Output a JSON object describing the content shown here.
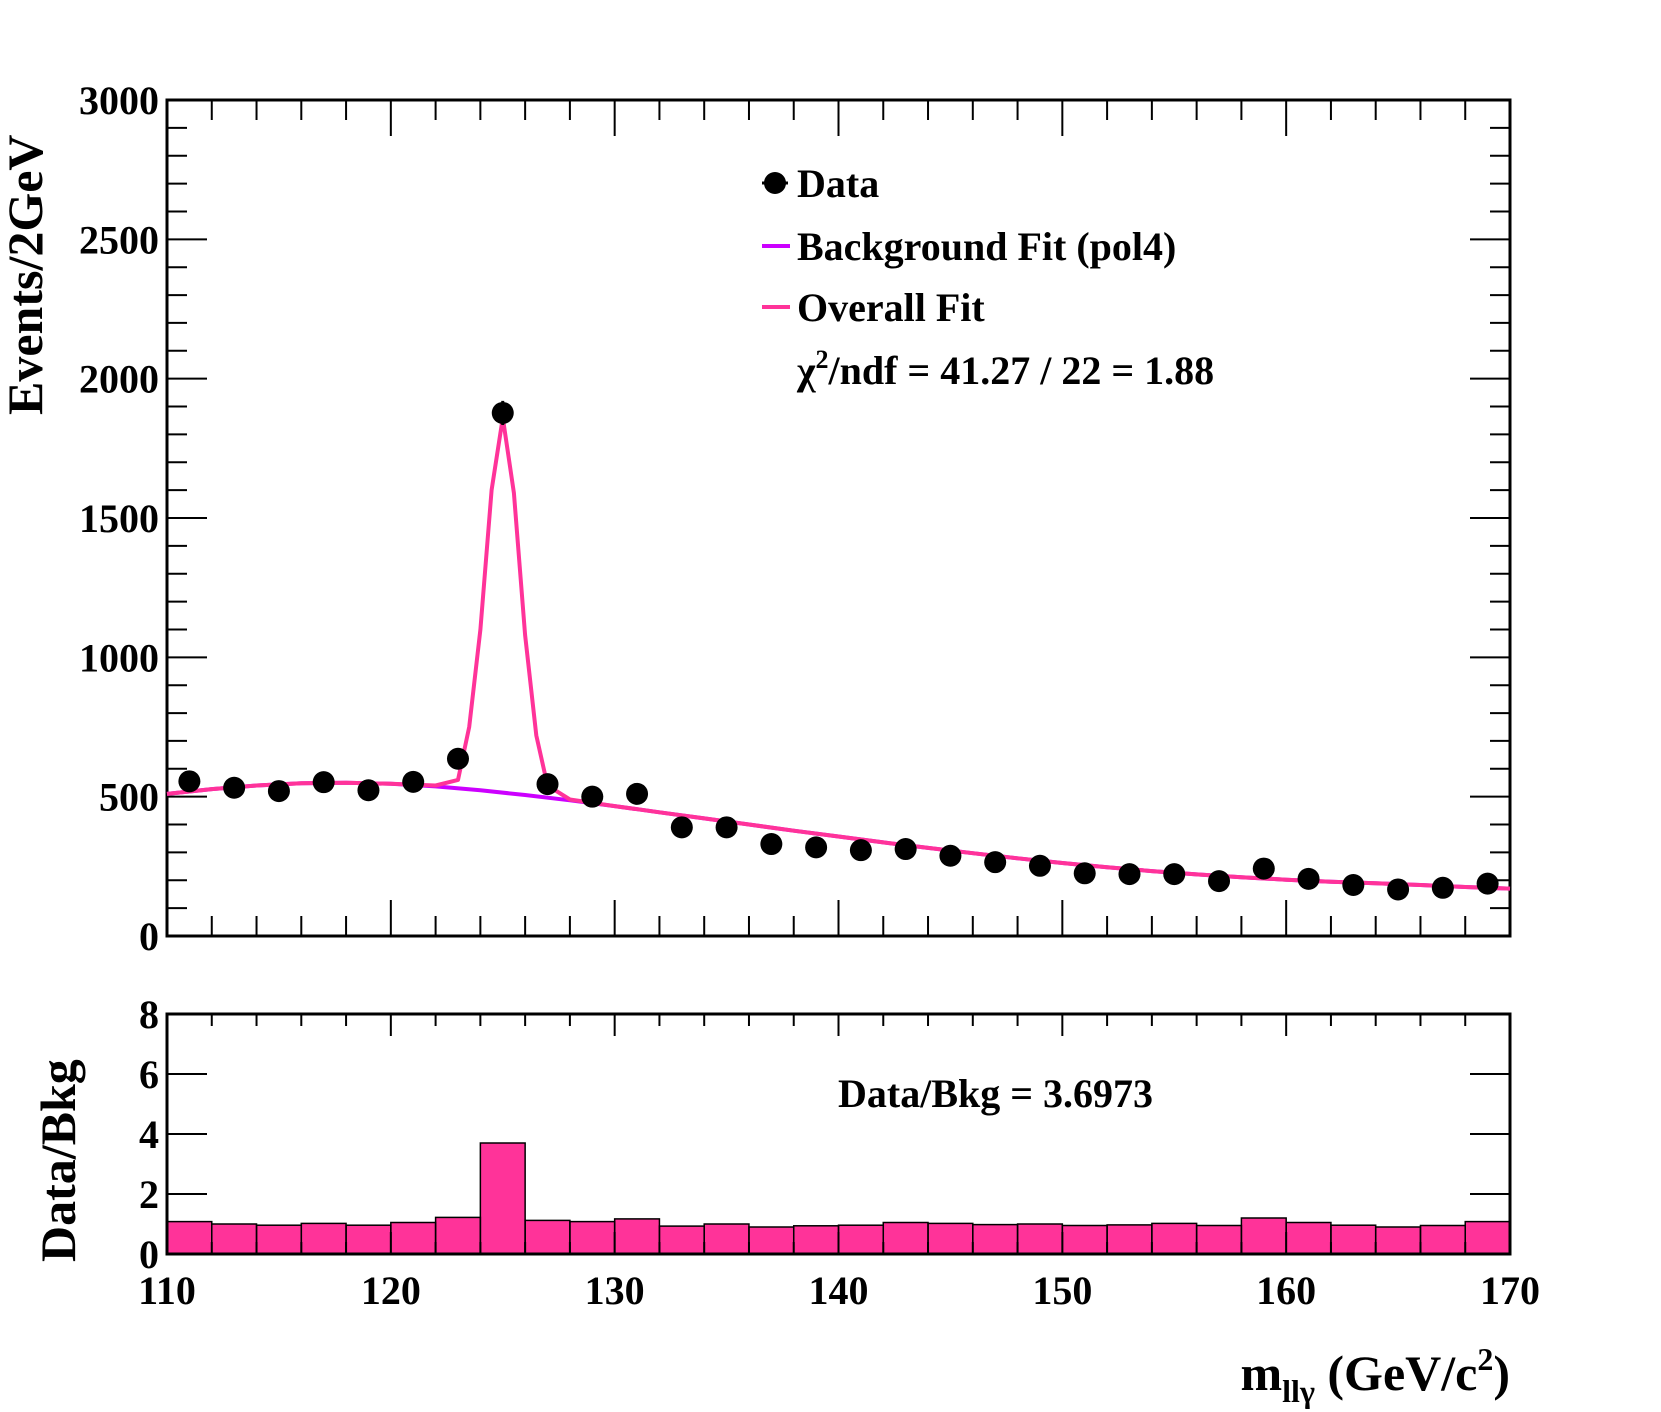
{
  "colors": {
    "data": "#000000",
    "background_fit": "#cc00ff",
    "overall_fit": "#ff3399",
    "ratio_fill": "#ff3399",
    "axes": "#000000"
  },
  "chart_data": [
    {
      "panel": "main",
      "type": "scatter",
      "title": "",
      "xlabel": "m",
      "xlabel_sub": "llγ",
      "xlabel_unit": " (GeV/c",
      "xlabel_sup": "2",
      "xlabel_close": ")",
      "ylabel": "Events/2GeV",
      "xlim": [
        110,
        170
      ],
      "ylim": [
        0,
        3000
      ],
      "ytick_labels": [
        "0",
        "500",
        "1000",
        "1500",
        "2000",
        "2500",
        "3000"
      ],
      "ytick_values": [
        0,
        500,
        1000,
        1500,
        2000,
        2500,
        3000
      ],
      "legend_position": "top-right",
      "legend": {
        "data_label": "Data",
        "background_label": "Background Fit (pol4)",
        "overall_label": "Overall Fit",
        "chi2_prefix": "χ",
        "chi2_sup": "2",
        "chi2_text": "/ndf = 41.27 / 22 = 1.88"
      },
      "series": [
        {
          "name": "Data",
          "style": "points",
          "x": [
            111,
            113,
            115,
            117,
            119,
            121,
            123,
            125,
            127,
            129,
            131,
            133,
            135,
            137,
            139,
            141,
            143,
            145,
            147,
            149,
            151,
            153,
            155,
            157,
            159,
            161,
            163,
            165,
            167,
            169
          ],
          "y": [
            555,
            532,
            520,
            552,
            523,
            553,
            636,
            1877,
            545,
            500,
            510,
            390,
            390,
            330,
            318,
            308,
            312,
            288,
            265,
            252,
            225,
            222,
            222,
            197,
            242,
            205,
            183,
            167,
            173,
            188
          ]
        },
        {
          "name": "Background Fit (pol4)",
          "style": "line",
          "x": [
            110,
            112,
            114,
            116,
            118,
            120,
            122,
            124,
            126,
            128,
            130,
            132,
            134,
            136,
            138,
            140,
            142,
            144,
            146,
            148,
            150,
            152,
            154,
            156,
            158,
            160,
            162,
            164,
            166,
            168,
            170
          ],
          "y": [
            510,
            527,
            540,
            548,
            550,
            546,
            537,
            523,
            506,
            487,
            466,
            444,
            422,
            400,
            378,
            357,
            336,
            316,
            297,
            279,
            262,
            247,
            233,
            221,
            211,
            202,
            195,
            189,
            183,
            176,
            170
          ]
        },
        {
          "name": "Overall Fit",
          "style": "line",
          "signal_peak_x": 125,
          "signal_peak_y": 1860,
          "signal_sigma": 0.75,
          "x": [
            110,
            112,
            114,
            116,
            118,
            120,
            122,
            123,
            123.5,
            124,
            124.5,
            125,
            125.5,
            126,
            126.5,
            127,
            128,
            130,
            132,
            134,
            136,
            138,
            140,
            142,
            144,
            146,
            148,
            150,
            152,
            154,
            156,
            158,
            160,
            162,
            164,
            166,
            168,
            170
          ],
          "y": [
            510,
            527,
            540,
            548,
            550,
            546,
            540,
            560,
            750,
            1100,
            1600,
            1860,
            1590,
            1080,
            720,
            540,
            490,
            466,
            444,
            422,
            400,
            378,
            357,
            336,
            316,
            297,
            279,
            262,
            247,
            233,
            221,
            211,
            202,
            195,
            189,
            183,
            176,
            170
          ]
        }
      ]
    },
    {
      "panel": "ratio",
      "type": "bar",
      "title": "",
      "ylabel": "Data/Bkg",
      "xlim": [
        110,
        170
      ],
      "ylim": [
        0,
        8
      ],
      "ytick_labels": [
        "0",
        "2",
        "4",
        "6",
        "8"
      ],
      "ytick_values": [
        0,
        2,
        4,
        6,
        8
      ],
      "xtick_labels": [
        "110",
        "120",
        "130",
        "140",
        "150",
        "160",
        "170"
      ],
      "xtick_values": [
        110,
        120,
        130,
        140,
        150,
        160,
        170
      ],
      "annotation": "Data/Bkg = 3.6973",
      "bin_edges": [
        110,
        112,
        114,
        116,
        118,
        120,
        122,
        124,
        126,
        128,
        130,
        132,
        134,
        136,
        138,
        140,
        142,
        144,
        146,
        148,
        150,
        152,
        154,
        156,
        158,
        160,
        162,
        164,
        166,
        168,
        170
      ],
      "series": [
        {
          "name": "Data/Bkg",
          "values": [
            1.08,
            1.0,
            0.96,
            1.02,
            0.96,
            1.05,
            1.22,
            3.7,
            1.12,
            1.08,
            1.17,
            0.93,
            1.0,
            0.9,
            0.94,
            0.96,
            1.05,
            1.02,
            0.98,
            1.0,
            0.95,
            0.97,
            1.02,
            0.95,
            1.2,
            1.05,
            0.96,
            0.9,
            0.95,
            1.08
          ]
        }
      ]
    }
  ]
}
